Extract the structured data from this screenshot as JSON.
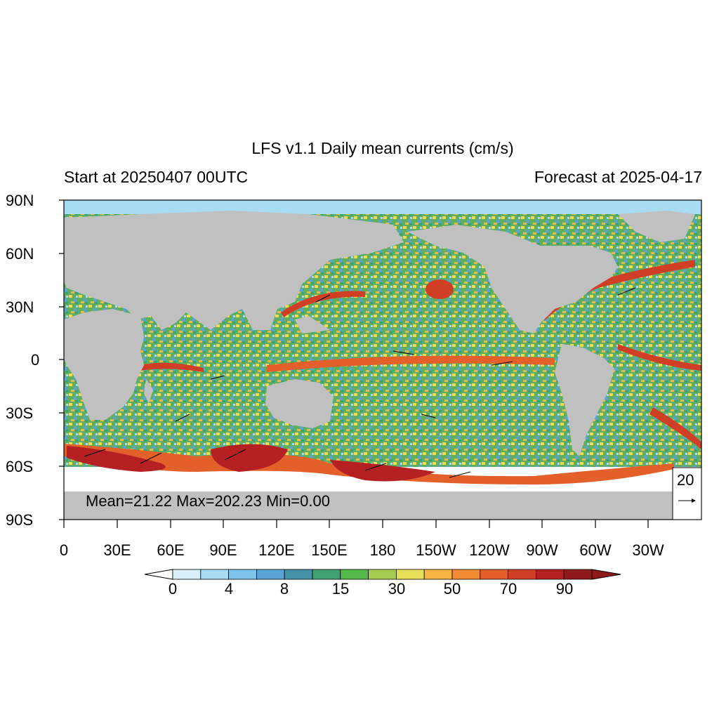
{
  "header": {
    "title": "LFS v1.1 Daily mean currents (cm/s)",
    "start": "Start at 20250407 00UTC",
    "forecast": "Forecast at 2025-04-17"
  },
  "axes": {
    "lat_labels": [
      "90N",
      "60N",
      "30N",
      "0",
      "30S",
      "60S",
      "90S"
    ],
    "lon_labels": [
      "0",
      "30E",
      "60E",
      "90E",
      "120E",
      "150E",
      "180",
      "150W",
      "120W",
      "90W",
      "60W",
      "30W"
    ]
  },
  "stats": {
    "text": "Mean=21.22  Max=202.23  Min=0.00"
  },
  "reference_vector": {
    "label": "20"
  },
  "colorbar": {
    "labels": [
      "0",
      "4",
      "8",
      "15",
      "30",
      "50",
      "70",
      "90"
    ],
    "colors": [
      "#d8f1fb",
      "#a8dcf2",
      "#7ec4ea",
      "#5aa3d6",
      "#4592a8",
      "#3fa170",
      "#55b84a",
      "#a6cc4f",
      "#e8df58",
      "#f6b442",
      "#f08a33",
      "#e4602b",
      "#d13e26",
      "#b52023",
      "#8f1a1c"
    ]
  },
  "colors": {
    "land": "#c0c0c0",
    "ocean_mid": "#6fb86a",
    "jet": "#d9302a"
  }
}
